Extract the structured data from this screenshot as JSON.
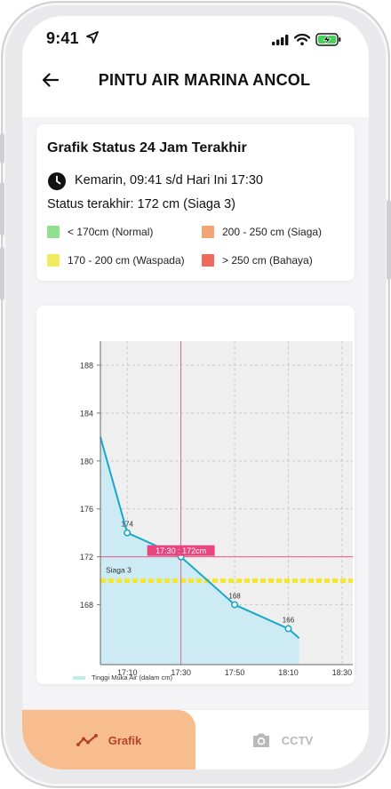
{
  "status_bar": {
    "time": "9:41"
  },
  "header": {
    "title": "PINTU AIR MARINA ANCOL"
  },
  "info": {
    "heading": "Grafik Status 24 Jam Terakhir",
    "range": "Kemarin, 09:41 s/d Hari Ini 17:30",
    "last_status": "Status terakhir: 172 cm (Siaga 3)",
    "legend": [
      {
        "label": "< 170cm (Normal)",
        "color": "#8fe08f"
      },
      {
        "label": "200 - 250 cm (Siaga)",
        "color": "#f2a472"
      },
      {
        "label": "170 - 200 cm (Waspada)",
        "color": "#f0ea5e"
      },
      {
        "label": "> 250 cm (Bahaya)",
        "color": "#ee6a5d"
      }
    ]
  },
  "chart_data": {
    "type": "area",
    "x": [
      "17:00",
      "17:10",
      "17:20",
      "17:30",
      "17:40",
      "17:50",
      "18:00",
      "18:10",
      "18:14"
    ],
    "x_ticks": [
      "17:10",
      "17:30",
      "17:50",
      "18:10",
      "18:30"
    ],
    "y_ticks": [
      "188",
      "184",
      "180",
      "176",
      "172",
      "168"
    ],
    "y": [
      182,
      174,
      173,
      172,
      170,
      168,
      167,
      166,
      165.2
    ],
    "point_labels": [
      {
        "x": "17:10",
        "y": 174,
        "label": "174"
      },
      {
        "x": "17:30",
        "y": 172,
        "label": "172"
      },
      {
        "x": "17:50",
        "y": 168,
        "label": "168"
      },
      {
        "x": "18:10",
        "y": 166,
        "label": "166"
      }
    ],
    "xlim": [
      "17:00",
      "18:34"
    ],
    "ylim": [
      163,
      190
    ],
    "threshold": {
      "value": 170,
      "label": "Siaga 3",
      "color": "#f5e62a"
    },
    "crosshair": {
      "x": "17:30",
      "y": 172,
      "label": "17:30 : 172cm",
      "color": "#e8457e"
    },
    "line_color": "#1aa8c8",
    "fill_color": "#cdebf4",
    "grid": true,
    "legend": {
      "label": "Tinggi Muka Air (dalam cm)",
      "position": "bottom-left"
    }
  },
  "tabbar": {
    "tabs": [
      {
        "label": "Grafik",
        "icon": "chart-line-icon",
        "active": true
      },
      {
        "label": "CCTV",
        "icon": "camera-icon",
        "active": false
      }
    ]
  }
}
